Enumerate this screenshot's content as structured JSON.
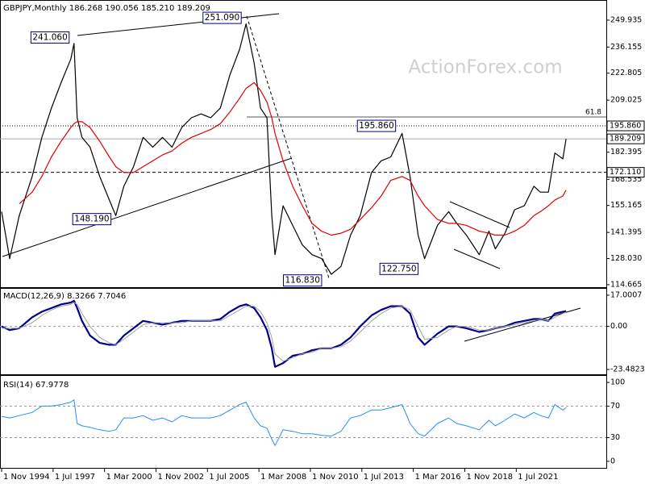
{
  "chart_data": [
    {
      "type": "line",
      "title": "GBPJPY,Monthly  186.268 190.056 185.210 189.209",
      "watermark": "ActionForex.com",
      "x": [
        "1994-11-01",
        "1995-04-01",
        "1995-10-01",
        "1996-06-01",
        "1996-12-01",
        "1997-06-01",
        "1997-12-01",
        "1998-06-01",
        "1998-08-01",
        "1998-10-01",
        "1999-01-01",
        "1999-06-01",
        "1999-12-01",
        "2000-06-01",
        "2000-10-01",
        "2001-03-01",
        "2001-09-01",
        "2002-03-01",
        "2002-09-01",
        "2003-03-01",
        "2003-09-01",
        "2004-03-01",
        "2004-09-01",
        "2005-03-01",
        "2005-09-01",
        "2006-03-01",
        "2006-09-01",
        "2007-03-01",
        "2007-07-01",
        "2007-12-01",
        "2008-04-01",
        "2008-08-01",
        "2008-11-01",
        "2009-01-01",
        "2009-06-01",
        "2009-12-01",
        "2010-06-01",
        "2010-12-01",
        "2011-06-01",
        "2011-12-01",
        "2012-06-01",
        "2012-12-01",
        "2013-06-01",
        "2014-01-01",
        "2014-07-01",
        "2015-01-01",
        "2015-08-01",
        "2016-01-01",
        "2016-06-01",
        "2016-10-01",
        "2017-06-01",
        "2018-01-01",
        "2018-06-01",
        "2018-12-01",
        "2019-08-01",
        "2020-02-01",
        "2020-06-01",
        "2020-12-01",
        "2021-06-01",
        "2021-12-01",
        "2022-06-01",
        "2022-10-01",
        "2023-03-01",
        "2023-07-01",
        "2023-12-01",
        "2024-02-01"
      ],
      "xlim": [
        "1994-10-01",
        "2026-03-01"
      ],
      "xticks": [
        {
          "value": "1994-11-01",
          "label": "1 Nov 1994"
        },
        {
          "value": "1997-07-01",
          "label": "1 Jul 1997"
        },
        {
          "value": "2000-03-01",
          "label": "1 Mar 2000"
        },
        {
          "value": "2002-11-01",
          "label": "1 Nov 2002"
        },
        {
          "value": "2005-07-01",
          "label": "1 Jul 2005"
        },
        {
          "value": "2008-03-01",
          "label": "1 Mar 2008"
        },
        {
          "value": "2010-11-01",
          "label": "1 Nov 2010"
        },
        {
          "value": "2013-07-01",
          "label": "1 Jul 2013"
        },
        {
          "value": "2016-03-01",
          "label": "1 Mar 2016"
        },
        {
          "value": "2018-11-01",
          "label": "1 Nov 2018"
        },
        {
          "value": "2021-07-01",
          "label": "1 Jul 2021"
        }
      ],
      "ylim": [
        113.4,
        259.8
      ],
      "yticks": [
        249.935,
        236.155,
        222.805,
        209.025,
        182.395,
        168.535,
        155.165,
        141.395,
        {
          "value": 128.03,
          "label": "128.030"
        },
        114.665
      ],
      "levels": [
        {
          "value": 195.86,
          "label": "195.860",
          "style": "dotted"
        },
        {
          "value": 189.209,
          "label": "189.209",
          "style": "solid"
        },
        {
          "value": 172.11,
          "label": "172.110",
          "style": "dashed"
        }
      ],
      "fib_label": "61.8",
      "annotations": [
        {
          "x": "1998-08-01",
          "value": 241.06,
          "label": "241.060"
        },
        {
          "x": "2007-07-01",
          "value": 251.09,
          "label": "251.090"
        },
        {
          "x": "2000-10-01",
          "value": 148.19,
          "label": "148.190"
        },
        {
          "x": "2011-09-01",
          "value": 116.83,
          "label": "116.830"
        },
        {
          "x": "2015-07-01",
          "value": 195.86,
          "label": "195.860"
        },
        {
          "x": "2016-09-01",
          "value": 122.75,
          "label": "122.750"
        }
      ],
      "series": [
        {
          "color": "#000000",
          "width": 1.2,
          "values": [
            152,
            128,
            150,
            170,
            190,
            205,
            218,
            230,
            238,
            200,
            190,
            185,
            170,
            158,
            150,
            165,
            175,
            190,
            185,
            190,
            185,
            195,
            200,
            202,
            200,
            205,
            222,
            235,
            248,
            228,
            205,
            200,
            150,
            130,
            155,
            145,
            135,
            130,
            128,
            120,
            124,
            140,
            150,
            172,
            178,
            180,
            192,
            170,
            140,
            128,
            145,
            152,
            146,
            140,
            130,
            142,
            133,
            141,
            153,
            155,
            165,
            162,
            162,
            182,
            179,
            189.209
          ]
        },
        {
          "color": "#e00000",
          "width": 1.2,
          "values": [
            null,
            null,
            156,
            162,
            170,
            180,
            188,
            195,
            197,
            198,
            198,
            195,
            188,
            180,
            175,
            172,
            172,
            175,
            178,
            181,
            183,
            187,
            190,
            192,
            194,
            197,
            203,
            210,
            215,
            218,
            214,
            208,
            200,
            192,
            178,
            165,
            155,
            146,
            142,
            140,
            141,
            143,
            148,
            154,
            160,
            168,
            170,
            168,
            160,
            155,
            148,
            146,
            146,
            145,
            142,
            141,
            140,
            140,
            142,
            145,
            150,
            152,
            155,
            158,
            160,
            163
          ]
        }
      ]
    },
    {
      "type": "line",
      "title": "MACD(12,26,9) 8.3266 7.7046",
      "ylim": [
        -26.1,
        20.5
      ],
      "yticks": [
        17.0007,
        {
          "value": 0,
          "label": "0.00"
        },
        -23.4823
      ],
      "grid_levels": [
        0
      ],
      "series": [
        {
          "color": "#00008b",
          "width": 2.2,
          "values": [
            0,
            -2,
            -1,
            5,
            8,
            10,
            12,
            13,
            14,
            10,
            3,
            -5,
            -9,
            -10,
            -10,
            -5,
            -1,
            3,
            2,
            1,
            2,
            3,
            3,
            3,
            3,
            4,
            8,
            11,
            12,
            10,
            5,
            -2,
            -12,
            -22,
            -20,
            -16,
            -15,
            -13,
            -12,
            -12,
            -10,
            -6,
            0,
            6,
            9,
            11,
            11,
            7,
            -6,
            -10,
            -4,
            0,
            0,
            -1,
            -3,
            -2,
            -1,
            0,
            2,
            3,
            4,
            4,
            3,
            7,
            8,
            8.3266
          ]
        },
        {
          "color": "#a0a0a0",
          "width": 1,
          "values": [
            -1,
            -1,
            -1,
            2,
            6,
            9,
            11,
            12,
            13,
            12,
            7,
            0,
            -6,
            -9,
            -10,
            -7,
            -3,
            1,
            2,
            2,
            2,
            2,
            3,
            3,
            3,
            3,
            6,
            9,
            11,
            11,
            8,
            2,
            -6,
            -15,
            -19,
            -17,
            -15,
            -14,
            -12,
            -12,
            -11,
            -8,
            -3,
            3,
            7,
            10,
            11,
            9,
            0,
            -7,
            -6,
            -2,
            0,
            0,
            -2,
            -2,
            -1,
            0,
            1,
            2,
            3,
            4,
            3,
            5,
            7,
            7.7046
          ]
        }
      ]
    },
    {
      "type": "line",
      "title": "RSI(14) 67.9778",
      "ylim": [
        -8.3,
        108.3
      ],
      "yticks": [
        100,
        70,
        30,
        0
      ],
      "grid_levels": [
        70,
        30
      ],
      "series": [
        {
          "color": "#1e90ff",
          "width": 1,
          "values": [
            57,
            55,
            58,
            62,
            70,
            70,
            72,
            75,
            78,
            48,
            45,
            43,
            40,
            38,
            40,
            55,
            55,
            58,
            52,
            55,
            50,
            58,
            55,
            55,
            55,
            58,
            65,
            72,
            75,
            55,
            45,
            42,
            28,
            20,
            40,
            38,
            35,
            35,
            33,
            32,
            38,
            55,
            58,
            65,
            65,
            68,
            72,
            48,
            35,
            32,
            48,
            55,
            48,
            45,
            40,
            52,
            45,
            52,
            60,
            55,
            62,
            58,
            55,
            72,
            65,
            67.9778
          ]
        }
      ]
    }
  ]
}
